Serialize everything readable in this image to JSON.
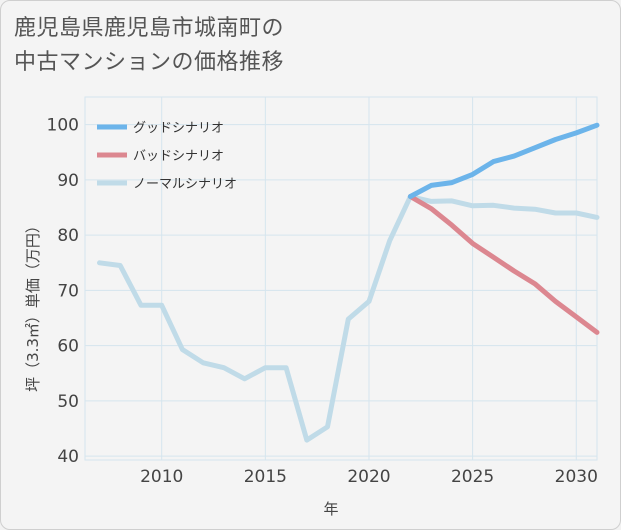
{
  "title": "鹿児島県鹿児島市城南町の\n中古マンションの価格推移",
  "chart_data": {
    "type": "line",
    "xlabel": "年",
    "ylabel": "坪（3.3㎡）単価（万円）",
    "xlim": [
      2006.3,
      2031
    ],
    "ylim": [
      39.3,
      105
    ],
    "xticks": [
      2010,
      2015,
      2020,
      2025,
      2030
    ],
    "yticks": [
      40,
      50,
      60,
      70,
      80,
      90,
      100
    ],
    "grid": true,
    "legend_position": "top-left",
    "series": [
      {
        "name": "グッドシナリオ",
        "color": "#6cb4ea",
        "x": [
          2022,
          2023,
          2024,
          2025,
          2026,
          2027,
          2028,
          2029,
          2030,
          2031
        ],
        "y": [
          87,
          89,
          89.5,
          91,
          93.3,
          94.3,
          95.8,
          97.3,
          98.5,
          99.9
        ]
      },
      {
        "name": "バッドシナリオ",
        "color": "#dc8790",
        "x": [
          2022,
          2023,
          2024,
          2025,
          2026,
          2027,
          2028,
          2029,
          2030,
          2031
        ],
        "y": [
          87,
          84.8,
          81.8,
          78.5,
          76,
          73.5,
          71.2,
          68,
          65.2,
          62.4
        ]
      },
      {
        "name": "ノーマルシナリオ",
        "color": "#c0dbe8",
        "x": [
          2007,
          2008,
          2009,
          2010,
          2011,
          2012,
          2013,
          2014,
          2015,
          2016,
          2017,
          2018,
          2019,
          2020,
          2021,
          2022,
          2023,
          2024,
          2025,
          2026,
          2027,
          2028,
          2029,
          2030,
          2031
        ],
        "y": [
          75,
          74.5,
          67.3,
          67.3,
          59.3,
          56.9,
          56,
          54,
          56,
          56,
          42.9,
          45.3,
          64.8,
          68,
          79,
          87,
          86.1,
          86.2,
          85.3,
          85.4,
          84.9,
          84.7,
          84,
          84,
          83.2
        ]
      }
    ]
  }
}
